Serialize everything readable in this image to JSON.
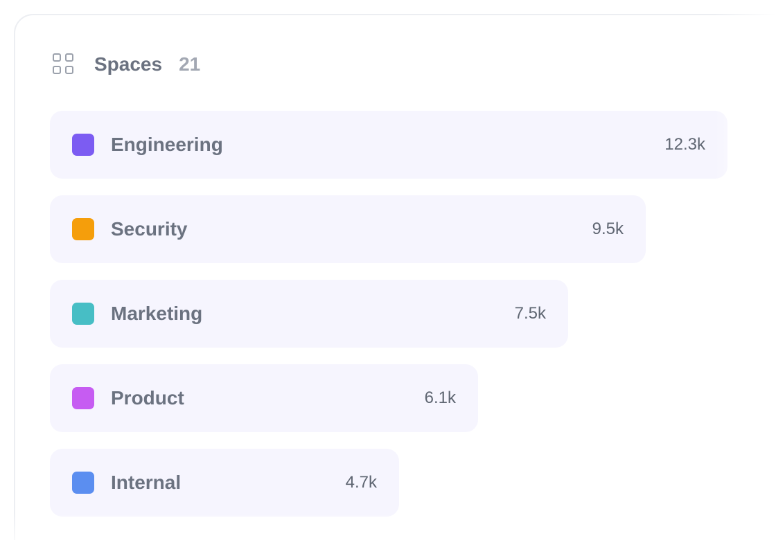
{
  "header": {
    "icon": "grid-icon",
    "title": "Spaces",
    "count": "21"
  },
  "spaces": [
    {
      "name": "Engineering",
      "value": "12.3k",
      "count": 12300,
      "color": "#7c5cf2"
    },
    {
      "name": "Security",
      "value": "9.5k",
      "count": 9500,
      "color": "#f59e0b"
    },
    {
      "name": "Marketing",
      "value": "7.5k",
      "count": 7500,
      "color": "#47bec5"
    },
    {
      "name": "Product",
      "value": "6.1k",
      "count": 6100,
      "color": "#c65cf2"
    },
    {
      "name": "Internal",
      "value": "4.7k",
      "count": 4700,
      "color": "#5b8ef0"
    }
  ]
}
